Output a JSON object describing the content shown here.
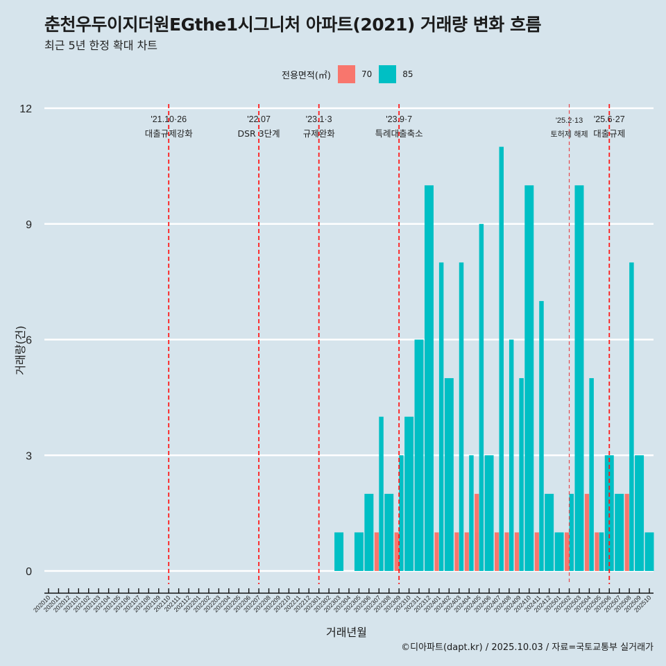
{
  "header": {
    "title": "춘천우두이지더원EGthe1시그니처 아파트(2021) 거래량 변화 흐름",
    "subtitle": "최근 5년 한정 확대 차트"
  },
  "legend": {
    "title": "전용면적(㎡)",
    "items": [
      {
        "label": "70",
        "color": "#F8766D"
      },
      {
        "label": "85",
        "color": "#00BFC4"
      }
    ]
  },
  "caption": "©디아파트(dapt.kr) / 2025.10.03 / 자료=국토교통부 실거래가",
  "chart_data": {
    "type": "bar",
    "title": "춘천우두이지더원EGthe1시그니처 아파트(2021) 거래량 변화 흐름",
    "subtitle": "최근 5년 한정 확대 차트",
    "xlabel": "거래년월",
    "ylabel": "거래량(건)",
    "ylim": [
      0,
      12
    ],
    "yticks": [
      "0",
      "3",
      "6",
      "9",
      "12"
    ],
    "grid": "horizontal",
    "legend_position": "top",
    "categories": [
      "202010",
      "202011",
      "202012",
      "202101",
      "202102",
      "202103",
      "202104",
      "202105",
      "202106",
      "202107",
      "202108",
      "202109",
      "202110",
      "202111",
      "202112",
      "202201",
      "202202",
      "202203",
      "202204",
      "202205",
      "202206",
      "202207",
      "202208",
      "202209",
      "202210",
      "202211",
      "202212",
      "202301",
      "202302",
      "202303",
      "202304",
      "202305",
      "202306",
      "202307",
      "202308",
      "202309",
      "202310",
      "202311",
      "202312",
      "202401",
      "202402",
      "202403",
      "202404",
      "202405",
      "202406",
      "202407",
      "202408",
      "202409",
      "202410",
      "202411",
      "202412",
      "202501",
      "202502",
      "202503",
      "202504",
      "202505",
      "202506",
      "202507",
      "202508",
      "202509",
      "202510"
    ],
    "series": [
      {
        "name": "70",
        "color": "#F8766D",
        "values": [
          0,
          0,
          0,
          0,
          0,
          0,
          0,
          0,
          0,
          0,
          0,
          0,
          0,
          0,
          0,
          0,
          0,
          0,
          0,
          0,
          0,
          0,
          0,
          0,
          0,
          0,
          0,
          0,
          0,
          0,
          0,
          0,
          0,
          1,
          0,
          1,
          0,
          0,
          0,
          1,
          0,
          1,
          1,
          2,
          0,
          1,
          1,
          1,
          0,
          1,
          0,
          0,
          1,
          0,
          2,
          1,
          0,
          0,
          2,
          0,
          0
        ]
      },
      {
        "name": "85",
        "color": "#00BFC4",
        "values": [
          0,
          0,
          0,
          0,
          0,
          0,
          0,
          0,
          0,
          0,
          0,
          0,
          0,
          0,
          0,
          0,
          0,
          0,
          0,
          0,
          0,
          0,
          0,
          0,
          0,
          0,
          0,
          0,
          0,
          1,
          0,
          1,
          2,
          4,
          2,
          3,
          4,
          6,
          10,
          8,
          5,
          8,
          3,
          9,
          3,
          11,
          6,
          5,
          10,
          7,
          2,
          1,
          2,
          10,
          5,
          1,
          3,
          2,
          8,
          3,
          1
        ]
      }
    ],
    "events": [
      {
        "month": "202110",
        "date": "'21.10·26",
        "label": "대출규제강화",
        "style": "major"
      },
      {
        "month": "202207",
        "date": "'22.07",
        "label": "DSR 3단계",
        "style": "major"
      },
      {
        "month": "202301",
        "date": "'23.1·3",
        "label": "규제완화",
        "style": "major"
      },
      {
        "month": "202309",
        "date": "'23.9·7",
        "label": "특례대출축소",
        "style": "major"
      },
      {
        "month": "202502",
        "date": "'25.2·13",
        "label": "토허제 해제",
        "style": "minor"
      },
      {
        "month": "202506",
        "date": "'25.6·27",
        "label": "대출규제",
        "style": "major"
      }
    ]
  }
}
